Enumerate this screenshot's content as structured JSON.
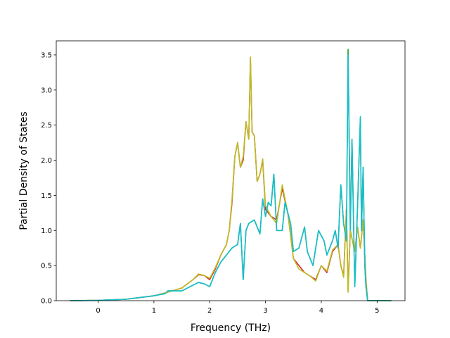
{
  "chart_data": {
    "type": "line",
    "title": "",
    "xlabel": "Frequency (THz)",
    "ylabel": "Partial Density of States",
    "xlim": [
      -0.75,
      5.5
    ],
    "ylim": [
      0.0,
      3.7
    ],
    "x_ticks": [
      0,
      1,
      2,
      3,
      4,
      5
    ],
    "y_ticks": [
      0.0,
      0.5,
      1.0,
      1.5,
      2.0,
      2.5,
      3.0,
      3.5
    ],
    "x_tick_labels": [
      "0",
      "1",
      "2",
      "3",
      "4",
      "5"
    ],
    "y_tick_labels": [
      "0.0",
      "0.5",
      "1.0",
      "1.5",
      "2.0",
      "2.5",
      "3.0",
      "3.5"
    ],
    "grid": false,
    "legend": "none",
    "series": [
      {
        "color": "#d62728",
        "points": [
          [
            -0.5,
            0
          ],
          [
            0,
            0.005
          ],
          [
            0.5,
            0.02
          ],
          [
            1.0,
            0.07
          ],
          [
            1.2,
            0.11
          ],
          [
            1.5,
            0.18
          ],
          [
            1.7,
            0.3
          ],
          [
            1.8,
            0.37
          ],
          [
            1.9,
            0.36
          ],
          [
            2.0,
            0.3
          ],
          [
            2.1,
            0.45
          ],
          [
            2.2,
            0.65
          ],
          [
            2.3,
            0.8
          ],
          [
            2.35,
            1.0
          ],
          [
            2.4,
            1.4
          ],
          [
            2.45,
            2.05
          ],
          [
            2.5,
            2.25
          ],
          [
            2.55,
            1.9
          ],
          [
            2.6,
            2.0
          ],
          [
            2.65,
            2.55
          ],
          [
            2.7,
            2.3
          ],
          [
            2.73,
            3.45
          ],
          [
            2.76,
            2.4
          ],
          [
            2.8,
            2.35
          ],
          [
            2.85,
            1.7
          ],
          [
            2.9,
            1.8
          ],
          [
            2.95,
            2.0
          ],
          [
            3.0,
            1.3
          ],
          [
            3.1,
            1.2
          ],
          [
            3.2,
            1.15
          ],
          [
            3.3,
            1.6
          ],
          [
            3.4,
            1.25
          ],
          [
            3.5,
            0.6
          ],
          [
            3.6,
            0.5
          ],
          [
            3.7,
            0.4
          ],
          [
            3.8,
            0.35
          ],
          [
            3.9,
            0.3
          ],
          [
            4.0,
            0.5
          ],
          [
            4.1,
            0.4
          ],
          [
            4.2,
            0.7
          ],
          [
            4.3,
            0.8
          ],
          [
            4.35,
            0.5
          ],
          [
            4.4,
            0.35
          ],
          [
            4.45,
            1.3
          ],
          [
            4.48,
            0.15
          ],
          [
            4.52,
            1.0
          ],
          [
            4.6,
            0.7
          ],
          [
            4.65,
            1.05
          ],
          [
            4.7,
            0.75
          ],
          [
            4.75,
            1.15
          ],
          [
            4.8,
            0.3
          ],
          [
            4.83,
            0
          ],
          [
            5.25,
            0
          ]
        ]
      },
      {
        "color": "#bcbd22",
        "points": [
          [
            -0.5,
            0
          ],
          [
            0,
            0.005
          ],
          [
            0.5,
            0.02
          ],
          [
            1.0,
            0.07
          ],
          [
            1.2,
            0.11
          ],
          [
            1.5,
            0.18
          ],
          [
            1.7,
            0.3
          ],
          [
            1.8,
            0.38
          ],
          [
            1.9,
            0.36
          ],
          [
            2.0,
            0.32
          ],
          [
            2.1,
            0.47
          ],
          [
            2.2,
            0.65
          ],
          [
            2.3,
            0.8
          ],
          [
            2.35,
            1.0
          ],
          [
            2.4,
            1.45
          ],
          [
            2.45,
            2.05
          ],
          [
            2.5,
            2.25
          ],
          [
            2.55,
            1.9
          ],
          [
            2.6,
            2.05
          ],
          [
            2.65,
            2.55
          ],
          [
            2.7,
            2.3
          ],
          [
            2.73,
            3.47
          ],
          [
            2.76,
            2.4
          ],
          [
            2.8,
            2.35
          ],
          [
            2.85,
            1.7
          ],
          [
            2.9,
            1.8
          ],
          [
            2.95,
            2.02
          ],
          [
            3.0,
            1.35
          ],
          [
            3.1,
            1.2
          ],
          [
            3.2,
            1.1
          ],
          [
            3.3,
            1.65
          ],
          [
            3.4,
            1.25
          ],
          [
            3.5,
            0.6
          ],
          [
            3.6,
            0.45
          ],
          [
            3.7,
            0.4
          ],
          [
            3.8,
            0.35
          ],
          [
            3.9,
            0.28
          ],
          [
            4.0,
            0.5
          ],
          [
            4.1,
            0.42
          ],
          [
            4.2,
            0.72
          ],
          [
            4.3,
            0.8
          ],
          [
            4.35,
            0.5
          ],
          [
            4.4,
            0.33
          ],
          [
            4.45,
            1.3
          ],
          [
            4.48,
            0.12
          ],
          [
            4.52,
            1.0
          ],
          [
            4.6,
            0.7
          ],
          [
            4.65,
            1.05
          ],
          [
            4.7,
            0.75
          ],
          [
            4.75,
            1.15
          ],
          [
            4.8,
            0.3
          ],
          [
            4.83,
            0
          ],
          [
            5.25,
            0
          ]
        ]
      },
      {
        "color": "#2ca02c",
        "points": [
          [
            -0.5,
            0
          ],
          [
            0,
            0.004
          ],
          [
            0.5,
            0.02
          ],
          [
            1.0,
            0.07
          ],
          [
            1.2,
            0.1
          ],
          [
            1.25,
            0.14
          ],
          [
            1.5,
            0.14
          ],
          [
            1.7,
            0.22
          ],
          [
            1.8,
            0.26
          ],
          [
            1.9,
            0.24
          ],
          [
            2.0,
            0.2
          ],
          [
            2.1,
            0.4
          ],
          [
            2.2,
            0.55
          ],
          [
            2.3,
            0.65
          ],
          [
            2.4,
            0.75
          ],
          [
            2.5,
            0.8
          ],
          [
            2.55,
            1.1
          ],
          [
            2.6,
            0.3
          ],
          [
            2.65,
            1.0
          ],
          [
            2.7,
            1.1
          ],
          [
            2.8,
            1.15
          ],
          [
            2.9,
            0.95
          ],
          [
            2.95,
            1.45
          ],
          [
            3.0,
            1.2
          ],
          [
            3.05,
            1.4
          ],
          [
            3.1,
            1.35
          ],
          [
            3.15,
            1.8
          ],
          [
            3.2,
            1.0
          ],
          [
            3.3,
            1.0
          ],
          [
            3.35,
            1.4
          ],
          [
            3.45,
            1.1
          ],
          [
            3.5,
            0.7
          ],
          [
            3.6,
            0.75
          ],
          [
            3.7,
            1.05
          ],
          [
            3.75,
            0.7
          ],
          [
            3.85,
            0.5
          ],
          [
            3.95,
            1.0
          ],
          [
            4.05,
            0.85
          ],
          [
            4.1,
            0.65
          ],
          [
            4.15,
            0.75
          ],
          [
            4.2,
            0.85
          ],
          [
            4.25,
            1.0
          ],
          [
            4.3,
            0.75
          ],
          [
            4.35,
            1.65
          ],
          [
            4.4,
            1.1
          ],
          [
            4.45,
            0.85
          ],
          [
            4.48,
            3.58
          ],
          [
            4.52,
            1.0
          ],
          [
            4.55,
            2.3
          ],
          [
            4.6,
            0.2
          ],
          [
            4.65,
            1.35
          ],
          [
            4.7,
            2.6
          ],
          [
            4.72,
            1.0
          ],
          [
            4.75,
            1.9
          ],
          [
            4.78,
            0.5
          ],
          [
            4.8,
            0.2
          ],
          [
            4.83,
            0
          ],
          [
            5.25,
            0
          ]
        ]
      },
      {
        "color": "#17becf",
        "points": [
          [
            -0.5,
            0
          ],
          [
            0,
            0.004
          ],
          [
            0.5,
            0.02
          ],
          [
            1.0,
            0.07
          ],
          [
            1.2,
            0.1
          ],
          [
            1.25,
            0.14
          ],
          [
            1.5,
            0.14
          ],
          [
            1.7,
            0.22
          ],
          [
            1.8,
            0.26
          ],
          [
            1.9,
            0.24
          ],
          [
            2.0,
            0.2
          ],
          [
            2.1,
            0.4
          ],
          [
            2.2,
            0.55
          ],
          [
            2.3,
            0.65
          ],
          [
            2.4,
            0.75
          ],
          [
            2.5,
            0.8
          ],
          [
            2.55,
            1.1
          ],
          [
            2.6,
            0.3
          ],
          [
            2.65,
            1.0
          ],
          [
            2.7,
            1.1
          ],
          [
            2.8,
            1.15
          ],
          [
            2.9,
            0.95
          ],
          [
            2.95,
            1.45
          ],
          [
            3.0,
            1.2
          ],
          [
            3.05,
            1.4
          ],
          [
            3.1,
            1.35
          ],
          [
            3.15,
            1.8
          ],
          [
            3.2,
            1.0
          ],
          [
            3.3,
            1.0
          ],
          [
            3.35,
            1.4
          ],
          [
            3.45,
            1.1
          ],
          [
            3.5,
            0.7
          ],
          [
            3.6,
            0.75
          ],
          [
            3.7,
            1.05
          ],
          [
            3.75,
            0.7
          ],
          [
            3.85,
            0.5
          ],
          [
            3.95,
            1.0
          ],
          [
            4.05,
            0.85
          ],
          [
            4.1,
            0.65
          ],
          [
            4.15,
            0.75
          ],
          [
            4.2,
            0.85
          ],
          [
            4.25,
            1.0
          ],
          [
            4.3,
            0.75
          ],
          [
            4.35,
            1.65
          ],
          [
            4.4,
            1.1
          ],
          [
            4.45,
            0.85
          ],
          [
            4.48,
            3.5
          ],
          [
            4.52,
            1.0
          ],
          [
            4.55,
            2.3
          ],
          [
            4.6,
            0.2
          ],
          [
            4.65,
            1.35
          ],
          [
            4.7,
            2.62
          ],
          [
            4.72,
            1.0
          ],
          [
            4.75,
            1.9
          ],
          [
            4.78,
            0.5
          ],
          [
            4.8,
            0.2
          ],
          [
            4.83,
            0
          ],
          [
            5.25,
            0
          ]
        ]
      }
    ]
  }
}
